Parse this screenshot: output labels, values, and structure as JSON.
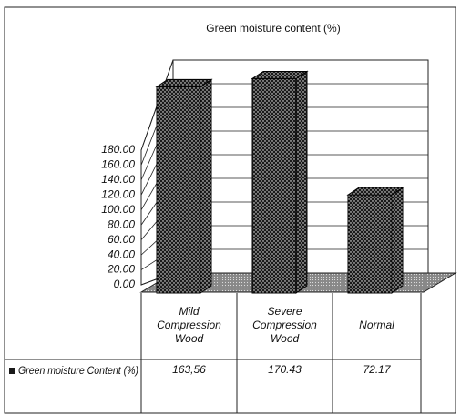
{
  "chart_data": {
    "type": "bar",
    "title": "Green moisture content (%)",
    "categories": [
      "Mild Compression Wood",
      "Severe Compression Wood",
      "Normal"
    ],
    "series": [
      {
        "name": "Green moisture Content (%)",
        "color": "#1a1a1a",
        "values": [
          163.56,
          170.43,
          72.17
        ],
        "value_labels": [
          "163,56",
          "170.43",
          "72.17"
        ]
      }
    ],
    "ylim": [
      0,
      180
    ],
    "yticks": [
      {
        "value": 0,
        "label": "0.00"
      },
      {
        "value": 20,
        "label": "20.00"
      },
      {
        "value": 40,
        "label": "40.00"
      },
      {
        "value": 60,
        "label": "60.00"
      },
      {
        "value": 80,
        "label": "80.00"
      },
      {
        "value": 100,
        "label": "100.00"
      },
      {
        "value": 120,
        "label": "120.00"
      },
      {
        "value": 140,
        "label": "140.00"
      },
      {
        "value": 160,
        "label": "160.00"
      },
      {
        "value": 180,
        "label": "180.00"
      }
    ],
    "grid": true
  }
}
